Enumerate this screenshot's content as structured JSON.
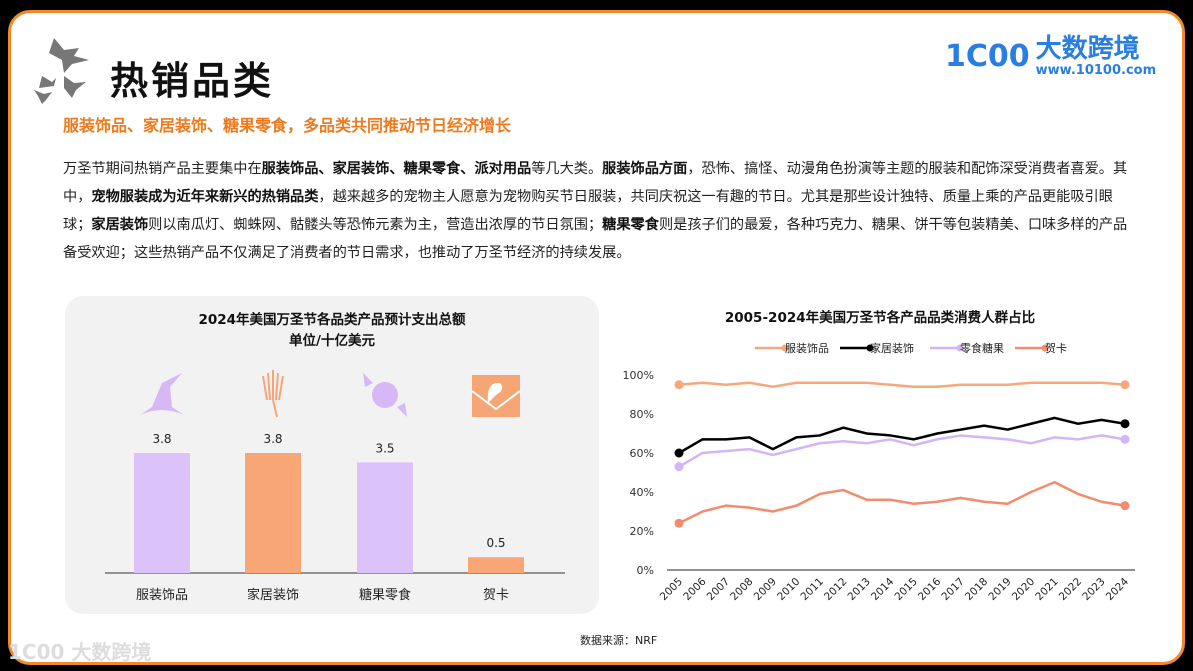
{
  "header": {
    "title": "热销品类",
    "subtitle": "服装饰品、家居装饰、糖果零食，多品类共同推动节日经济增长"
  },
  "logo": {
    "mark": "1C00",
    "name": "大数跨境",
    "url": "www.10100.com",
    "watermark": "1C00 大数跨境"
  },
  "body": {
    "segments": [
      {
        "t": "万圣节期间热销产品主要集中在",
        "b": false
      },
      {
        "t": "服装饰品、家居装饰、糖果零食、派对用品",
        "b": true
      },
      {
        "t": "等几大类。",
        "b": false
      },
      {
        "t": "服装饰品方面",
        "b": true
      },
      {
        "t": "，恐怖、搞怪、动漫角色扮演等主题的服装和配饰深受消费者喜爱。其中，",
        "b": false
      },
      {
        "t": "宠物服装成为近年来新兴的热销品类",
        "b": true
      },
      {
        "t": "，越来越多的宠物主人愿意为宠物购买节日服装，共同庆祝这一有趣的节日。尤其是那些设计独特、质量上乘的产品更能吸引眼球；",
        "b": false
      },
      {
        "t": "家居装饰",
        "b": true
      },
      {
        "t": "则以南瓜灯、蜘蛛网、骷髅头等恐怖元素为主，营造出浓厚的节日氛围；",
        "b": false
      },
      {
        "t": "糖果零食",
        "b": true
      },
      {
        "t": "则是孩子们的最爱，各种巧克力、糖果、饼干等包装精美、口味多样的产品备受欢迎；这些热销产品不仅满足了消费者的节日需求，也推动了万圣节经济的持续发展。",
        "b": false
      }
    ]
  },
  "source": "数据来源：NRF",
  "chart_data": [
    {
      "type": "bar",
      "title": "2024年美国万圣节各品类产品预计支出总额",
      "subtitle": "单位/十亿美元",
      "categories": [
        "服装饰品",
        "家居装饰",
        "糖果零食",
        "贺卡"
      ],
      "values": [
        3.8,
        3.8,
        3.5,
        0.5
      ],
      "colors": [
        "#dcc2fb",
        "#f9a677",
        "#dcc2fb",
        "#f9a677"
      ],
      "icons": [
        "witch-hat-icon",
        "skeleton-hand-icon",
        "candy-icon",
        "envelope-ghost-icon"
      ],
      "ylim": [
        0,
        4.5
      ]
    },
    {
      "type": "line",
      "title": "2005-2024年美国万圣节各产品品类消费人群占比",
      "x": [
        2005,
        2006,
        2007,
        2008,
        2009,
        2010,
        2011,
        2012,
        2013,
        2014,
        2015,
        2016,
        2017,
        2018,
        2019,
        2020,
        2021,
        2022,
        2023,
        2024
      ],
      "yticks": [
        "0%",
        "20%",
        "40%",
        "60%",
        "80%",
        "100%"
      ],
      "ylim": [
        0,
        100
      ],
      "legend": "top",
      "series": [
        {
          "name": "服装饰品",
          "color": "#f7a77c",
          "values": [
            95,
            96,
            95,
            96,
            94,
            96,
            96,
            96,
            96,
            95,
            94,
            94,
            95,
            95,
            95,
            96,
            96,
            96,
            96,
            95
          ]
        },
        {
          "name": "家居装饰",
          "color": "#000000",
          "values": [
            60,
            67,
            67,
            68,
            62,
            68,
            69,
            73,
            70,
            69,
            67,
            70,
            72,
            74,
            72,
            75,
            78,
            75,
            77,
            75
          ]
        },
        {
          "name": "零食糖果",
          "color": "#d5b4f7",
          "values": [
            53,
            60,
            61,
            62,
            59,
            62,
            65,
            66,
            65,
            67,
            64,
            67,
            69,
            68,
            67,
            65,
            68,
            67,
            69,
            67
          ]
        },
        {
          "name": "贺卡",
          "color": "#f28c6c",
          "values": [
            24,
            30,
            33,
            32,
            30,
            33,
            39,
            41,
            36,
            36,
            34,
            35,
            37,
            35,
            34,
            40,
            45,
            39,
            35,
            33
          ]
        }
      ]
    }
  ]
}
